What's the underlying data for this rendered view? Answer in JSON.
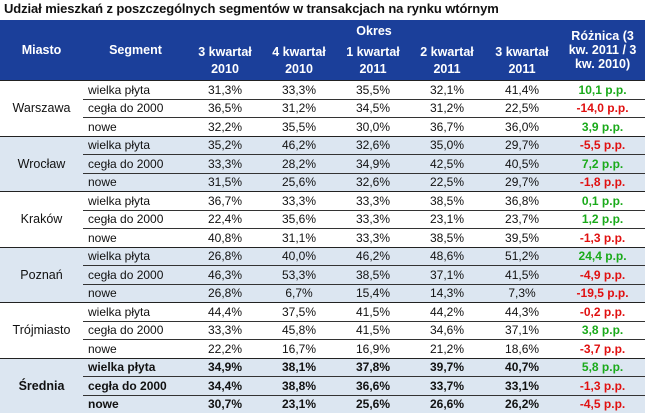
{
  "title": "Udział mieszkań z poszczególnych segmentów w transakcjach na rynku wtórnym",
  "header": {
    "city": "Miasto",
    "segment": "Segment",
    "period": "Okres",
    "periods": [
      "3 kwartał 2010",
      "4 kwartał 2010",
      "1 kwartał 2011",
      "2 kwartał 2011",
      "3 kwartał 2011"
    ],
    "diff": "Różnica (3 kw. 2011 / 3 kw. 2010)"
  },
  "colors": {
    "header_bg": "#1b3f9a",
    "alt_row_bg": "#dce6f1",
    "positive": "#1aaa1a",
    "negative": "#e01010"
  },
  "groups": [
    {
      "city": "Warszawa",
      "rows": [
        {
          "segment": "wielka płyta",
          "values": [
            "31,3%",
            "33,3%",
            "35,5%",
            "32,1%",
            "41,4%"
          ],
          "diff": "10,1 p.p.",
          "sign": "pos"
        },
        {
          "segment": "cegła do 2000",
          "values": [
            "36,5%",
            "31,2%",
            "34,5%",
            "31,2%",
            "22,5%"
          ],
          "diff": "-14,0 p.p.",
          "sign": "neg"
        },
        {
          "segment": "nowe",
          "values": [
            "32,2%",
            "35,5%",
            "30,0%",
            "36,7%",
            "36,0%"
          ],
          "diff": "3,9 p.p.",
          "sign": "pos"
        }
      ]
    },
    {
      "city": "Wrocław",
      "rows": [
        {
          "segment": "wielka płyta",
          "values": [
            "35,2%",
            "46,2%",
            "32,6%",
            "35,0%",
            "29,7%"
          ],
          "diff": "-5,5 p.p.",
          "sign": "neg"
        },
        {
          "segment": "cegła do 2000",
          "values": [
            "33,3%",
            "28,2%",
            "34,9%",
            "42,5%",
            "40,5%"
          ],
          "diff": "7,2 p.p.",
          "sign": "pos"
        },
        {
          "segment": "nowe",
          "values": [
            "31,5%",
            "25,6%",
            "32,6%",
            "22,5%",
            "29,7%"
          ],
          "diff": "-1,8 p.p.",
          "sign": "neg"
        }
      ]
    },
    {
      "city": "Kraków",
      "rows": [
        {
          "segment": "wielka płyta",
          "values": [
            "36,7%",
            "33,3%",
            "33,3%",
            "38,5%",
            "36,8%"
          ],
          "diff": "0,1 p.p.",
          "sign": "pos"
        },
        {
          "segment": "cegła do 2000",
          "values": [
            "22,4%",
            "35,6%",
            "33,3%",
            "23,1%",
            "23,7%"
          ],
          "diff": "1,2 p.p.",
          "sign": "pos"
        },
        {
          "segment": "nowe",
          "values": [
            "40,8%",
            "31,1%",
            "33,3%",
            "38,5%",
            "39,5%"
          ],
          "diff": "-1,3 p.p.",
          "sign": "neg"
        }
      ]
    },
    {
      "city": "Poznań",
      "rows": [
        {
          "segment": "wielka płyta",
          "values": [
            "26,8%",
            "40,0%",
            "46,2%",
            "48,6%",
            "51,2%"
          ],
          "diff": "24,4 p.p.",
          "sign": "pos"
        },
        {
          "segment": "cegła do 2000",
          "values": [
            "46,3%",
            "53,3%",
            "38,5%",
            "37,1%",
            "41,5%"
          ],
          "diff": "-4,9 p.p.",
          "sign": "neg"
        },
        {
          "segment": "nowe",
          "values": [
            "26,8%",
            "6,7%",
            "15,4%",
            "14,3%",
            "7,3%"
          ],
          "diff": "-19,5 p.p.",
          "sign": "neg"
        }
      ]
    },
    {
      "city": "Trójmiasto",
      "rows": [
        {
          "segment": "wielka płyta",
          "values": [
            "44,4%",
            "37,5%",
            "41,5%",
            "44,2%",
            "44,3%"
          ],
          "diff": "-0,2 p.p.",
          "sign": "neg"
        },
        {
          "segment": "cegła do 2000",
          "values": [
            "33,3%",
            "45,8%",
            "41,5%",
            "34,6%",
            "37,1%"
          ],
          "diff": "3,8 p.p.",
          "sign": "pos"
        },
        {
          "segment": "nowe",
          "values": [
            "22,2%",
            "16,7%",
            "16,9%",
            "21,2%",
            "18,6%"
          ],
          "diff": "-3,7 p.p.",
          "sign": "neg"
        }
      ]
    },
    {
      "city": "Średnia",
      "bold": true,
      "rows": [
        {
          "segment": "wielka płyta",
          "values": [
            "34,9%",
            "38,1%",
            "37,8%",
            "39,7%",
            "40,7%"
          ],
          "diff": "5,8 p.p.",
          "sign": "pos"
        },
        {
          "segment": "cegła do 2000",
          "values": [
            "34,4%",
            "38,8%",
            "36,6%",
            "33,7%",
            "33,1%"
          ],
          "diff": "-1,3 p.p.",
          "sign": "neg"
        },
        {
          "segment": "nowe",
          "values": [
            "30,7%",
            "23,1%",
            "25,6%",
            "26,6%",
            "26,2%"
          ],
          "diff": "-4,5 p.p.",
          "sign": "neg"
        }
      ]
    }
  ]
}
